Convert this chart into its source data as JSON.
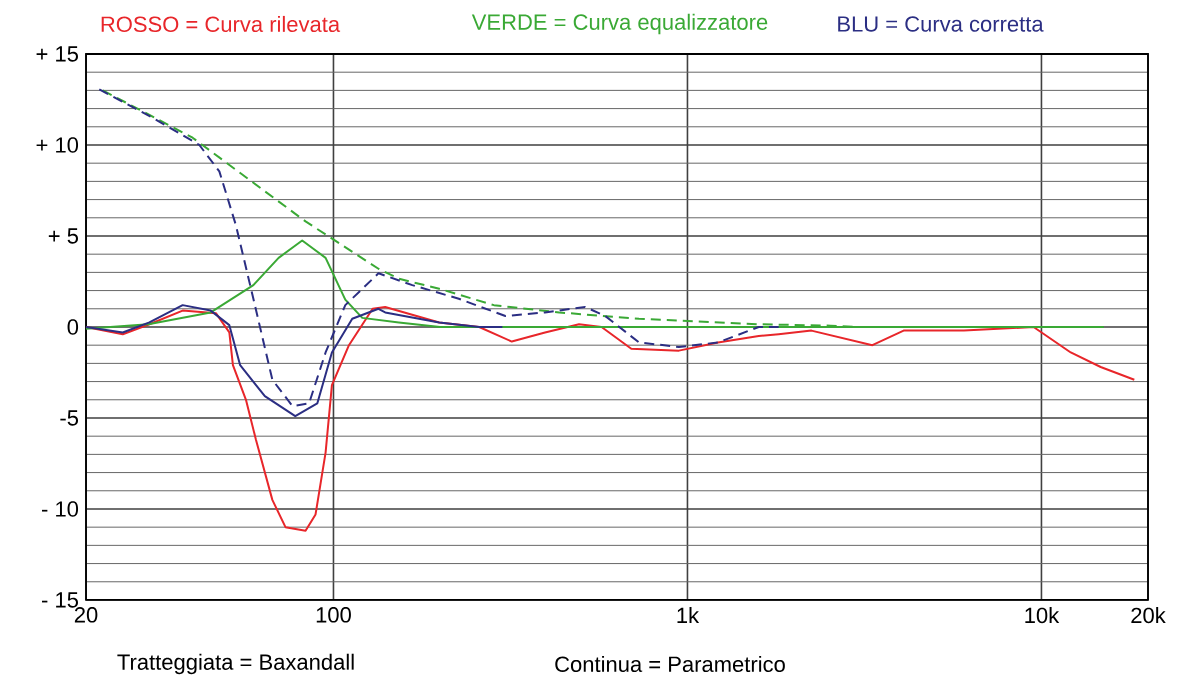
{
  "chart_data": {
    "type": "line",
    "log": "x",
    "grid": true,
    "legend": "top",
    "xlim": [
      20,
      20000
    ],
    "ylim": [
      -15,
      15
    ],
    "xticks": [
      {
        "value": 20,
        "label": "20"
      },
      {
        "value": 100,
        "label": "100"
      },
      {
        "value": 1000,
        "label": "1k"
      },
      {
        "value": 10000,
        "label": "10k"
      },
      {
        "value": 20000,
        "label": "20k"
      }
    ],
    "yticks": [
      {
        "value": 15,
        "label": "+ 15"
      },
      {
        "value": 10,
        "label": "+ 10"
      },
      {
        "value": 5,
        "label": "+ 5"
      },
      0,
      {
        "value": -5,
        "label": "-5"
      },
      {
        "value": -10,
        "label": "- 10"
      },
      {
        "value": -15,
        "label": "- 15"
      }
    ],
    "series": [
      {
        "name": "ROSSO = Curva rilevata",
        "color": "#e8262a",
        "line_style": "solid",
        "x": [
          20,
          25.4,
          30.2,
          37.5,
          46.6,
          50.8,
          52,
          56.6,
          60.4,
          67.2,
          73.2,
          83.4,
          89,
          95,
          99,
          110.6,
          129,
          140,
          199,
          258,
          319,
          396,
          494,
          572,
          694,
          946,
          1220,
          1590,
          1810,
          2240,
          3330,
          4080,
          6040,
          9500,
          12100,
          14700,
          18300
        ],
        "values": [
          0,
          -0.4,
          0.15,
          0.9,
          0.75,
          -0.3,
          -2.1,
          -4.0,
          -6.2,
          -9.5,
          -11.0,
          -11.2,
          -10.3,
          -6.9,
          -3.2,
          -1.0,
          1.0,
          1.1,
          0.25,
          0,
          -0.8,
          -0.3,
          0.15,
          0,
          -1.2,
          -1.3,
          -0.85,
          -0.5,
          -0.4,
          -0.2,
          -1.0,
          -0.2,
          -0.2,
          0,
          -1.4,
          -2.2,
          -2.9
        ]
      },
      {
        "name": "VERDE = Curva equalizzatore",
        "color": "#3aa935",
        "line_style": "solid",
        "x": [
          20,
          30,
          45,
          59.4,
          70,
          81.6,
          95,
          108,
          120.6,
          153,
          200,
          15000
        ],
        "values": [
          -0.1,
          0.15,
          0.8,
          2.3,
          3.8,
          4.75,
          3.8,
          1.5,
          0.5,
          0.25,
          0,
          0
        ]
      },
      {
        "name": "BLU = Curva corretta",
        "color": "#2b2e83",
        "line_style": "solid",
        "x": [
          20,
          25.4,
          30.2,
          37.5,
          45,
          50.8,
          54.5,
          64,
          78,
          90,
          99,
          113,
          134,
          140,
          199,
          258,
          300
        ],
        "values": [
          0,
          -0.3,
          0.25,
          1.2,
          0.9,
          0.1,
          -2.1,
          -3.8,
          -4.9,
          -4.2,
          -1.4,
          0.45,
          1.0,
          0.8,
          0.25,
          0,
          0
        ]
      },
      {
        "color": "#3aa935",
        "line_style": "dashed",
        "x": [
          22.3,
          40,
          83.4,
          134,
          153,
          199,
          284,
          434,
          730,
          1590,
          2540,
          3000
        ],
        "values": [
          13.0,
          10.4,
          5.8,
          3.2,
          2.65,
          2.1,
          1.2,
          0.8,
          0.45,
          0.15,
          0.07,
          0
        ]
      },
      {
        "color": "#2b2e83",
        "line_style": "dashed",
        "x": [
          21.8,
          30.8,
          41.8,
          47.6,
          53,
          59.4,
          67.2,
          76.6,
          85.3,
          95,
          108,
          134,
          167,
          226,
          306,
          396,
          514,
          586,
          730,
          946,
          1220,
          1590,
          1810
        ],
        "values": [
          13.05,
          11.5,
          10.0,
          8.55,
          5.6,
          1.55,
          -2.9,
          -4.35,
          -4.2,
          -1.4,
          1.2,
          2.95,
          2.3,
          1.55,
          0.6,
          0.8,
          1.1,
          0.6,
          -0.85,
          -1.1,
          -0.85,
          0,
          0
        ]
      }
    ],
    "annotations": [
      "Tratteggiata = Baxandall",
      "Continua = Parametrico"
    ]
  }
}
